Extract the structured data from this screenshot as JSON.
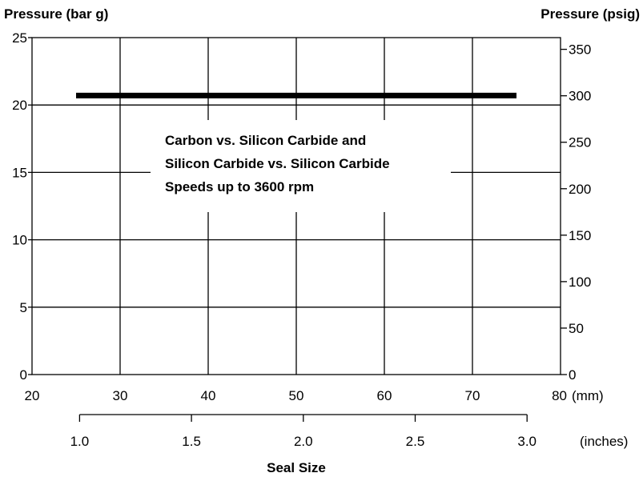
{
  "chart_data": {
    "type": "line",
    "left_axis_title": "Pressure (bar g)",
    "right_axis_title": "Pressure (psig)",
    "x_title": "Seal Size",
    "x_mm_ticks": [
      "20",
      "30",
      "40",
      "50",
      "60",
      "70",
      "80"
    ],
    "x_mm_unit": "(mm)",
    "x_mm_range": [
      20,
      80
    ],
    "x_inch_ticks": [
      "1.0",
      "1.5",
      "2.0",
      "2.5",
      "3.0"
    ],
    "x_inch_unit": "(inches)",
    "y_bar_ticks": [
      "0",
      "5",
      "10",
      "15",
      "20",
      "25"
    ],
    "y_bar_range": [
      0,
      25
    ],
    "y_psig_ticks": [
      "0",
      "50",
      "100",
      "150",
      "200",
      "250",
      "300",
      "350"
    ],
    "grid": true,
    "annotation": [
      "Carbon vs. Silicon Carbide and",
      "Silicon Carbide vs. Silicon Carbide",
      "Speeds up to 3600 rpm"
    ],
    "series": [
      {
        "x": [
          25,
          75
        ],
        "y": [
          20.7,
          20.7
        ]
      }
    ]
  }
}
